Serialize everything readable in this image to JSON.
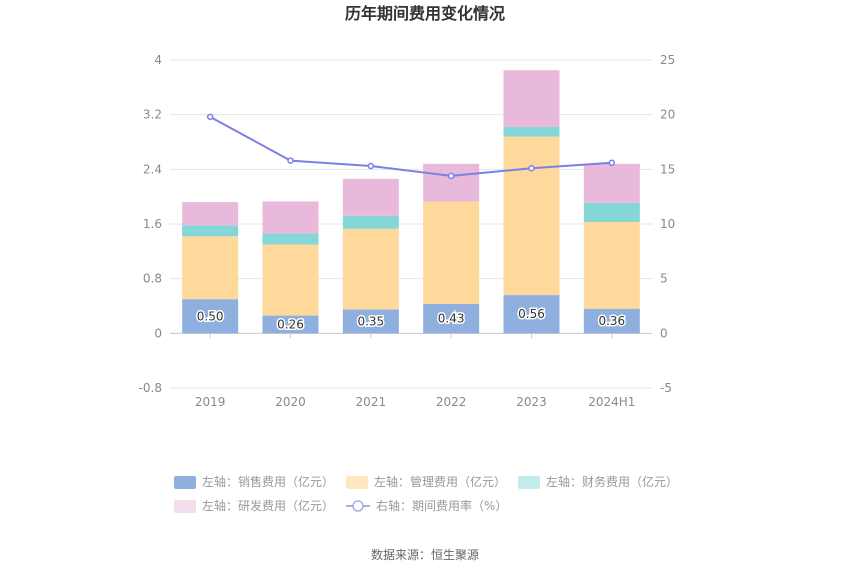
{
  "title": "历年期间费用变化情况",
  "source": "数据来源：恒生聚源",
  "chart_data": {
    "type": "bar",
    "stacked": true,
    "categories": [
      "2019",
      "2020",
      "2021",
      "2022",
      "2023",
      "2024H1"
    ],
    "y_left": {
      "ticks": [
        "4",
        "3.2",
        "2.4",
        "1.6",
        "0.8",
        "0",
        "-0.8"
      ],
      "lim": [
        -0.8,
        4
      ]
    },
    "y_right": {
      "ticks": [
        "25",
        "20",
        "15",
        "10",
        "5",
        "0",
        "-5"
      ],
      "lim": [
        -5,
        25
      ]
    },
    "series": [
      {
        "name": "左轴：销售费用（亿元）",
        "color": "#8fb0de",
        "values": [
          0.5,
          0.26,
          0.35,
          0.43,
          0.56,
          0.36
        ],
        "labels": [
          "0.50",
          "0.26",
          "0.35",
          "0.43",
          "0.56",
          "0.36"
        ]
      },
      {
        "name": "左轴：管理费用（亿元）",
        "color": "#ffd89b",
        "values": [
          0.92,
          1.04,
          1.18,
          1.5,
          2.32,
          1.27
        ]
      },
      {
        "name": "左轴：财务费用（亿元）",
        "color": "#85d6d6",
        "values": [
          0.16,
          0.16,
          0.19,
          0.0,
          0.14,
          0.28
        ]
      },
      {
        "name": "左轴：研发费用（亿元）",
        "color": "#e8b9da",
        "values": [
          0.34,
          0.47,
          0.54,
          0.55,
          0.83,
          0.57
        ]
      }
    ],
    "line": {
      "name": "右轴：期间费用率（%）",
      "color": "#7b7fe8",
      "values": [
        19.8,
        15.8,
        15.3,
        14.4,
        15.1,
        15.6
      ]
    },
    "legend_position": "bottom",
    "grid": true
  }
}
